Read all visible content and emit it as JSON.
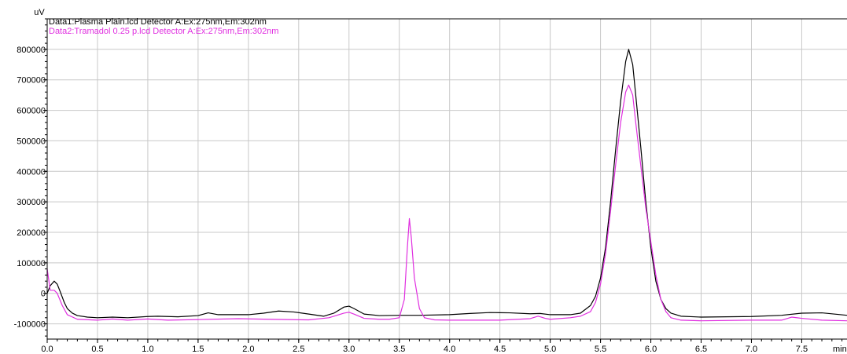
{
  "chart_data": {
    "type": "line",
    "y_unit": "uV",
    "x_unit": "min",
    "xlim": [
      0.0,
      7.95
    ],
    "ylim": [
      -150000,
      900000
    ],
    "x_ticks": [
      0.0,
      0.5,
      1.0,
      1.5,
      2.0,
      2.5,
      3.0,
      3.5,
      4.0,
      4.5,
      5.0,
      5.5,
      6.0,
      6.5,
      7.0,
      7.5
    ],
    "x_tick_labels": [
      "0.0",
      "0.5",
      "1.0",
      "1.5",
      "2.0",
      "2.5",
      "3.0",
      "3.5",
      "4.0",
      "4.5",
      "5.0",
      "5.5",
      "6.0",
      "6.5",
      "7.0",
      "7.5"
    ],
    "y_ticks": [
      -100000,
      0,
      100000,
      200000,
      300000,
      400000,
      500000,
      600000,
      700000,
      800000
    ],
    "y_tick_labels": [
      "-100000",
      "0",
      "100000",
      "200000",
      "300000",
      "400000",
      "500000",
      "600000",
      "700000",
      "800000"
    ],
    "grid": true,
    "legend_placement": "top-left",
    "series": [
      {
        "name": "Data1:Plasma Plain.lcd Detector A:Ex:275nm,Em:302nm",
        "color": "#000000",
        "x": [
          0.0,
          0.03,
          0.07,
          0.1,
          0.13,
          0.17,
          0.2,
          0.25,
          0.3,
          0.4,
          0.5,
          0.65,
          0.8,
          1.0,
          1.1,
          1.3,
          1.5,
          1.6,
          1.7,
          2.0,
          2.15,
          2.3,
          2.45,
          2.6,
          2.75,
          2.85,
          2.95,
          3.0,
          3.05,
          3.15,
          3.3,
          3.5,
          3.7,
          4.0,
          4.2,
          4.4,
          4.6,
          4.8,
          4.9,
          5.0,
          5.2,
          5.3,
          5.4,
          5.45,
          5.5,
          5.55,
          5.6,
          5.65,
          5.7,
          5.75,
          5.78,
          5.82,
          5.85,
          5.9,
          5.95,
          6.0,
          6.05,
          6.1,
          6.15,
          6.2,
          6.3,
          6.5,
          7.0,
          7.3,
          7.5,
          7.7,
          7.95
        ],
        "y": [
          0,
          25000,
          40000,
          30000,
          5000,
          -30000,
          -50000,
          -65000,
          -73000,
          -78000,
          -80000,
          -78000,
          -80000,
          -76000,
          -75000,
          -77000,
          -73000,
          -64000,
          -70000,
          -70000,
          -65000,
          -58000,
          -61000,
          -68000,
          -75000,
          -65000,
          -45000,
          -42000,
          -50000,
          -68000,
          -73000,
          -72000,
          -72000,
          -70000,
          -66000,
          -63000,
          -64000,
          -67000,
          -66000,
          -70000,
          -70000,
          -65000,
          -40000,
          -10000,
          50000,
          150000,
          300000,
          470000,
          630000,
          760000,
          800000,
          750000,
          650000,
          480000,
          300000,
          150000,
          40000,
          -20000,
          -50000,
          -65000,
          -75000,
          -78000,
          -76000,
          -72000,
          -65000,
          -64000,
          -72000
        ]
      },
      {
        "name": "Data2:Tramadol 0.25 p.lcd Detector A:Ex:275nm,Em:302nm",
        "color": "#e02fe0",
        "x": [
          0.0,
          0.03,
          0.07,
          0.1,
          0.15,
          0.2,
          0.3,
          0.5,
          0.65,
          0.8,
          1.0,
          1.2,
          1.5,
          1.9,
          2.2,
          2.6,
          2.8,
          2.95,
          3.0,
          3.05,
          3.15,
          3.3,
          3.4,
          3.5,
          3.55,
          3.58,
          3.6,
          3.62,
          3.65,
          3.7,
          3.75,
          3.85,
          4.0,
          4.5,
          4.8,
          4.88,
          4.95,
          5.0,
          5.2,
          5.3,
          5.4,
          5.45,
          5.5,
          5.55,
          5.6,
          5.65,
          5.7,
          5.75,
          5.78,
          5.82,
          5.85,
          5.9,
          5.95,
          6.0,
          6.05,
          6.1,
          6.15,
          6.2,
          6.3,
          6.5,
          7.0,
          7.3,
          7.4,
          7.5,
          7.7,
          7.95
        ],
        "y": [
          80000,
          10000,
          10000,
          0,
          -40000,
          -70000,
          -85000,
          -88000,
          -84000,
          -88000,
          -84000,
          -88000,
          -86000,
          -83000,
          -85000,
          -87000,
          -80000,
          -65000,
          -62000,
          -68000,
          -82000,
          -85000,
          -85000,
          -80000,
          -20000,
          150000,
          245000,
          180000,
          50000,
          -50000,
          -80000,
          -87000,
          -88000,
          -88000,
          -83000,
          -75000,
          -82000,
          -85000,
          -80000,
          -75000,
          -60000,
          -30000,
          30000,
          130000,
          270000,
          420000,
          560000,
          660000,
          683000,
          650000,
          560000,
          420000,
          280000,
          170000,
          60000,
          -20000,
          -60000,
          -80000,
          -88000,
          -90000,
          -88000,
          -88000,
          -78000,
          -82000,
          -88000,
          -90000
        ]
      }
    ]
  }
}
